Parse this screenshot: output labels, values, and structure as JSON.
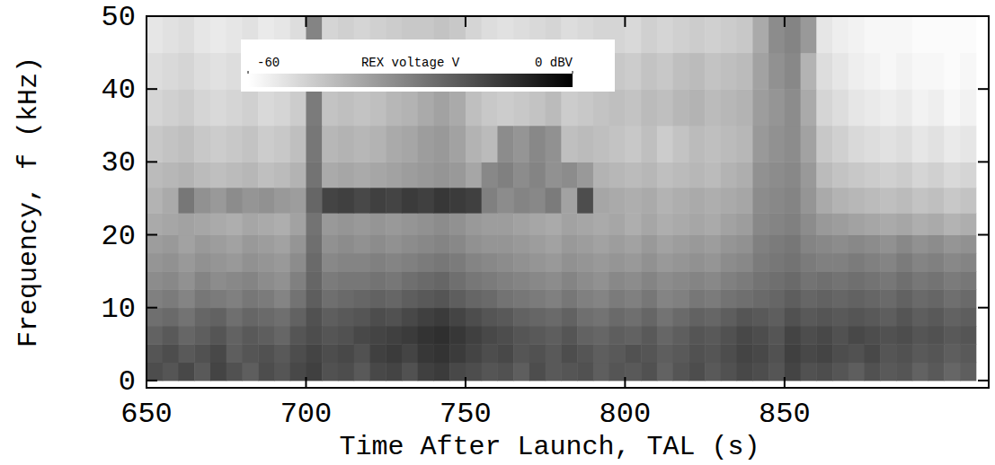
{
  "chart_data": {
    "type": "heatmap",
    "x_label": "Time After Launch, TAL (s)",
    "y_label": "Frequency, f (kHz)",
    "xlim": [
      650,
      914
    ],
    "ylim": [
      -1,
      50
    ],
    "xticks": [
      650,
      700,
      750,
      800,
      850
    ],
    "yticks": [
      0,
      10,
      20,
      30,
      40,
      50
    ],
    "x_bins": [
      650,
      655,
      660,
      665,
      670,
      675,
      680,
      685,
      690,
      695,
      700,
      705,
      710,
      715,
      720,
      725,
      730,
      735,
      740,
      745,
      750,
      755,
      760,
      765,
      770,
      775,
      780,
      785,
      790,
      795,
      800,
      805,
      810,
      815,
      820,
      825,
      830,
      835,
      840,
      845,
      850,
      855,
      860,
      865,
      870,
      875,
      880,
      885,
      890,
      895,
      900,
      905,
      910
    ],
    "y_bins": [
      0,
      2.5,
      5,
      7.5,
      10,
      12.5,
      15,
      17.5,
      20,
      23,
      26.5,
      30,
      35,
      40,
      45,
      50
    ],
    "cells": [
      [
        -18,
        -20,
        -17,
        -21,
        -16,
        -19,
        -22,
        -18,
        -20,
        -17,
        -15,
        -19,
        -18,
        -21,
        -17,
        -16,
        -19,
        -15,
        -14,
        -17,
        -18,
        -20,
        -19,
        -22,
        -18,
        -21,
        -20,
        -19,
        -22,
        -20,
        -21,
        -19,
        -23,
        -20,
        -18,
        -21,
        -19,
        -17,
        -18,
        -20,
        -16,
        -19,
        -18,
        -20,
        -22,
        -19,
        -21,
        -20,
        -23,
        -21,
        -24,
        -22
      ],
      [
        -20,
        -18,
        -21,
        -19,
        -17,
        -22,
        -20,
        -19,
        -21,
        -18,
        -16,
        -18,
        -17,
        -19,
        -15,
        -14,
        -16,
        -13,
        -12,
        -14,
        -16,
        -18,
        -17,
        -20,
        -19,
        -21,
        -18,
        -20,
        -22,
        -21,
        -19,
        -20,
        -22,
        -21,
        -19,
        -20,
        -18,
        -16,
        -17,
        -19,
        -15,
        -17,
        -16,
        -18,
        -19,
        -17,
        -20,
        -19,
        -21,
        -20,
        -22,
        -21
      ],
      [
        -23,
        -21,
        -24,
        -22,
        -20,
        -23,
        -21,
        -22,
        -24,
        -20,
        -18,
        -20,
        -19,
        -17,
        -16,
        -15,
        -14,
        -12,
        -11,
        -13,
        -15,
        -17,
        -18,
        -20,
        -21,
        -22,
        -20,
        -23,
        -24,
        -22,
        -23,
        -21,
        -24,
        -22,
        -20,
        -21,
        -19,
        -17,
        -18,
        -20,
        -16,
        -18,
        -17,
        -19,
        -17,
        -18,
        -19,
        -18,
        -20,
        -19,
        -21,
        -20
      ],
      [
        -26,
        -25,
        -27,
        -24,
        -23,
        -26,
        -24,
        -25,
        -26,
        -23,
        -19,
        -22,
        -21,
        -20,
        -18,
        -19,
        -17,
        -15,
        -14,
        -16,
        -18,
        -20,
        -21,
        -23,
        -24,
        -25,
        -23,
        -26,
        -27,
        -25,
        -26,
        -24,
        -27,
        -25,
        -23,
        -24,
        -22,
        -20,
        -21,
        -22,
        -19,
        -21,
        -20,
        -21,
        -20,
        -21,
        -22,
        -20,
        -22,
        -21,
        -23,
        -22
      ],
      [
        -30,
        -29,
        -31,
        -28,
        -29,
        -30,
        -28,
        -29,
        -31,
        -27,
        -22,
        -26,
        -25,
        -24,
        -23,
        -24,
        -22,
        -21,
        -20,
        -22,
        -24,
        -25,
        -27,
        -28,
        -29,
        -30,
        -28,
        -30,
        -31,
        -29,
        -30,
        -28,
        -31,
        -30,
        -28,
        -29,
        -27,
        -26,
        -25,
        -24,
        -22,
        -24,
        -23,
        -24,
        -23,
        -24,
        -25,
        -23,
        -25,
        -24,
        -26,
        -25
      ],
      [
        -33,
        -32,
        -34,
        -31,
        -33,
        -32,
        -31,
        -33,
        -34,
        -30,
        -24,
        -29,
        -28,
        -28,
        -27,
        -28,
        -26,
        -25,
        -24,
        -26,
        -28,
        -29,
        -30,
        -31,
        -32,
        -33,
        -31,
        -33,
        -34,
        -32,
        -33,
        -31,
        -33,
        -32,
        -31,
        -32,
        -30,
        -29,
        -27,
        -26,
        -25,
        -27,
        -26,
        -27,
        -26,
        -27,
        -28,
        -26,
        -28,
        -27,
        -29,
        -28
      ],
      [
        -35,
        -34,
        -36,
        -34,
        -35,
        -36,
        -34,
        -35,
        -36,
        -33,
        -25,
        -32,
        -31,
        -31,
        -30,
        -31,
        -30,
        -29,
        -28,
        -29,
        -31,
        -32,
        -33,
        -34,
        -35,
        -36,
        -34,
        -35,
        -36,
        -35,
        -36,
        -34,
        -36,
        -35,
        -34,
        -35,
        -33,
        -32,
        -29,
        -28,
        -27,
        -29,
        -30,
        -30,
        -29,
        -30,
        -31,
        -29,
        -31,
        -30,
        -32,
        -31
      ],
      [
        -37,
        -36,
        -38,
        -36,
        -37,
        -38,
        -36,
        -37,
        -38,
        -35,
        -26,
        -34,
        -33,
        -34,
        -33,
        -34,
        -33,
        -32,
        -31,
        -32,
        -34,
        -35,
        -35,
        -36,
        -37,
        -38,
        -36,
        -37,
        -38,
        -37,
        -38,
        -36,
        -38,
        -37,
        -36,
        -37,
        -35,
        -34,
        -30,
        -29,
        -28,
        -31,
        -32,
        -33,
        -32,
        -33,
        -34,
        -32,
        -34,
        -33,
        -35,
        -34
      ],
      [
        -40,
        -39,
        -38,
        -39,
        -40,
        -41,
        -39,
        -40,
        -41,
        -38,
        -27,
        -36,
        -35,
        -36,
        -35,
        -36,
        -35,
        -34,
        -33,
        -34,
        -36,
        -37,
        -37,
        -38,
        -39,
        -40,
        -38,
        -39,
        -40,
        -39,
        -41,
        -39,
        -41,
        -40,
        -39,
        -40,
        -38,
        -37,
        -32,
        -31,
        -30,
        -33,
        -36,
        -37,
        -38,
        -39,
        -40,
        -39,
        -41,
        -40,
        -42,
        -41
      ],
      [
        -42,
        -40,
        -28,
        -34,
        -36,
        -33,
        -35,
        -34,
        -36,
        -37,
        -24,
        -16,
        -15,
        -17,
        -15,
        -16,
        -14,
        -15,
        -13,
        -14,
        -15,
        -30,
        -33,
        -31,
        -32,
        -29,
        -38,
        -18,
        -39,
        -40,
        -41,
        -40,
        -42,
        -41,
        -40,
        -41,
        -40,
        -39,
        -33,
        -32,
        -31,
        -35,
        -40,
        -42,
        -43,
        -44,
        -45,
        -44,
        -46,
        -45,
        -47,
        -46
      ],
      [
        -44,
        -43,
        -42,
        -44,
        -45,
        -44,
        -43,
        -45,
        -44,
        -42,
        -27,
        -40,
        -39,
        -40,
        -39,
        -38,
        -37,
        -36,
        -35,
        -36,
        -39,
        -32,
        -30,
        -33,
        -31,
        -34,
        -33,
        -36,
        -42,
        -43,
        -44,
        -43,
        -45,
        -44,
        -43,
        -44,
        -42,
        -41,
        -34,
        -33,
        -32,
        -36,
        -44,
        -46,
        -47,
        -48,
        -49,
        -48,
        -50,
        -49,
        -51,
        -50
      ],
      [
        -47,
        -46,
        -45,
        -47,
        -48,
        -47,
        -46,
        -48,
        -47,
        -45,
        -28,
        -43,
        -42,
        -43,
        -42,
        -40,
        -39,
        -37,
        -36,
        -38,
        -42,
        -44,
        -33,
        -35,
        -32,
        -34,
        -45,
        -44,
        -45,
        -46,
        -47,
        -45,
        -48,
        -46,
        -44,
        -45,
        -44,
        -43,
        -36,
        -34,
        -33,
        -38,
        -47,
        -49,
        -51,
        -52,
        -53,
        -52,
        -54,
        -53,
        -55,
        -54
      ],
      [
        -50,
        -49,
        -48,
        -50,
        -51,
        -50,
        -49,
        -51,
        -50,
        -48,
        -29,
        -46,
        -45,
        -46,
        -45,
        -43,
        -42,
        -40,
        -38,
        -40,
        -45,
        -47,
        -48,
        -47,
        -46,
        -44,
        -48,
        -47,
        -46,
        -45,
        -46,
        -44,
        -45,
        -43,
        -42,
        -44,
        -43,
        -42,
        -37,
        -35,
        -33,
        -40,
        -50,
        -52,
        -54,
        -55,
        -56,
        -55,
        -57,
        -56,
        -58,
        -57
      ],
      [
        -52,
        -51,
        -50,
        -52,
        -53,
        -52,
        -51,
        -53,
        -52,
        -50,
        -30,
        -48,
        -47,
        -48,
        -47,
        -46,
        -45,
        -44,
        -41,
        -43,
        -48,
        -50,
        -51,
        -50,
        -49,
        -48,
        -50,
        -49,
        -48,
        -47,
        -48,
        -46,
        -47,
        -45,
        -44,
        -46,
        -45,
        -44,
        -38,
        -34,
        -32,
        -42,
        -52,
        -54,
        -56,
        -57,
        -58,
        -57,
        -58,
        -58,
        -59,
        -58
      ],
      [
        -54,
        -53,
        -52,
        -54,
        -55,
        -54,
        -53,
        -55,
        -54,
        -52,
        -31,
        -50,
        -49,
        -50,
        -49,
        -48,
        -47,
        -47,
        -46,
        -47,
        -50,
        -52,
        -53,
        -52,
        -51,
        -50,
        -52,
        -51,
        -50,
        -50,
        -51,
        -49,
        -50,
        -49,
        -48,
        -49,
        -48,
        -47,
        -40,
        -33,
        -31,
        -36,
        -54,
        -56,
        -57,
        -58,
        -58,
        -58,
        -59,
        -59,
        -59,
        -59
      ]
    ],
    "colorbar": {
      "label": "REX voltage V",
      "range": [
        -60,
        0
      ],
      "ticks": [
        -60,
        {
          "value": 0,
          "label": "0 dBV"
        }
      ]
    }
  }
}
